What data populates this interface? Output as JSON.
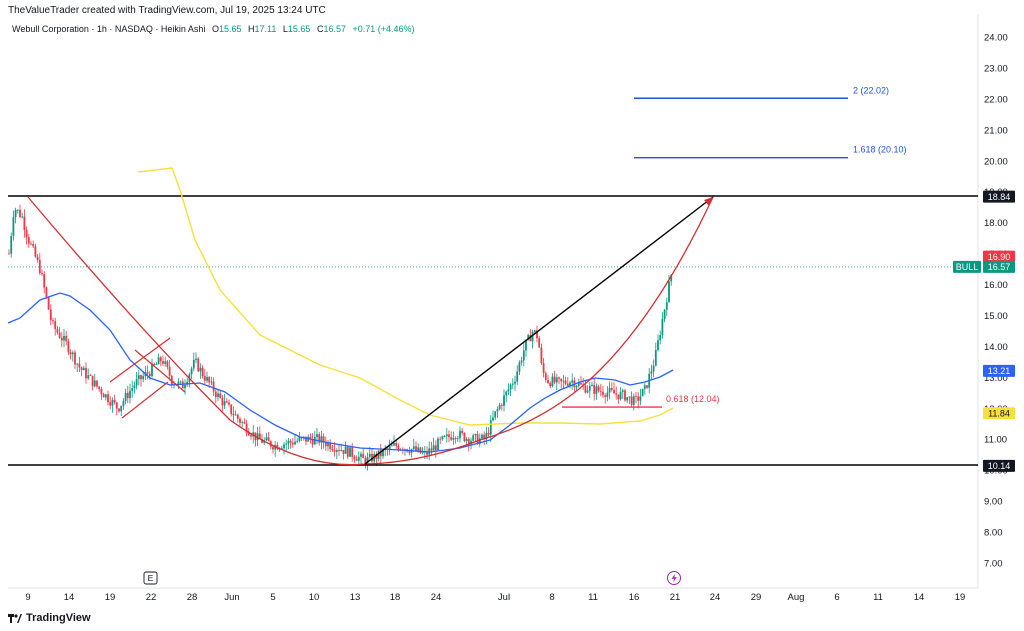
{
  "header": {
    "attribution": "TheValueTrader created with TradingView.com, Jul 19, 2025 13:24 UTC"
  },
  "legend": {
    "symbol": "Webull Corporation · 1h · NASDAQ · Heikin Ashi",
    "o_label": "O",
    "o_value": "15.65",
    "h_label": "H",
    "h_value": "17.11",
    "l_label": "L",
    "l_value": "15.65",
    "c_label": "C",
    "c_value": "16.57",
    "change": "+0.71 (+4.46%)"
  },
  "footer": {
    "brand": "TradingView"
  },
  "colors": {
    "up": "#089981",
    "down": "#f23645",
    "ma_blue": "#2962ff",
    "ma_yellow": "#f7e03c",
    "arc_red": "#d32f2f",
    "fib_blue": "#1e53e5",
    "grid": "#f0f3fa"
  },
  "icons": {
    "earnings": "E",
    "dividend": "lightning-icon"
  },
  "chart_data": {
    "type": "candlestick",
    "style": "Heikin Ashi",
    "ylim": [
      6.5,
      24.5
    ],
    "y_ticks": [
      "24.00",
      "23.00",
      "22.00",
      "21.00",
      "20.00",
      "19.00",
      "18.00",
      "17.00",
      "16.00",
      "15.00",
      "14.00",
      "13.00",
      "12.00",
      "11.00",
      "10.00",
      "9.00",
      "8.00",
      "7.00"
    ],
    "x_ticks": [
      "9",
      "14",
      "19",
      "22",
      "28",
      "Jun",
      "5",
      "10",
      "13",
      "18",
      "24",
      "Jul",
      "8",
      "11",
      "16",
      "21",
      "24",
      "29",
      "Aug",
      "6",
      "11",
      "14",
      "19"
    ],
    "current_price": 16.57,
    "price_labels": [
      {
        "value": 18.84,
        "text": "18.84",
        "color": "#131722"
      },
      {
        "value": 16.9,
        "text": "16.90",
        "color": "#f23645"
      },
      {
        "value": 16.57,
        "text": "16.57",
        "tag": "BULL",
        "color": "#089981"
      },
      {
        "value": 13.21,
        "text": "13.21",
        "color": "#2962ff"
      },
      {
        "value": 11.84,
        "text": "11.84",
        "color": "#f7e03c"
      },
      {
        "value": 10.14,
        "text": "10.14",
        "color": "#131722"
      }
    ],
    "horizontal_lines": [
      18.84,
      10.14
    ],
    "fibonacci": [
      {
        "label": "2 (22.02)",
        "value": 22.02
      },
      {
        "label": "1.618 (20.10)",
        "value": 20.1
      },
      {
        "label": "0.618 (12.04)",
        "value": 12.04
      }
    ],
    "markers": [
      "E"
    ]
  }
}
